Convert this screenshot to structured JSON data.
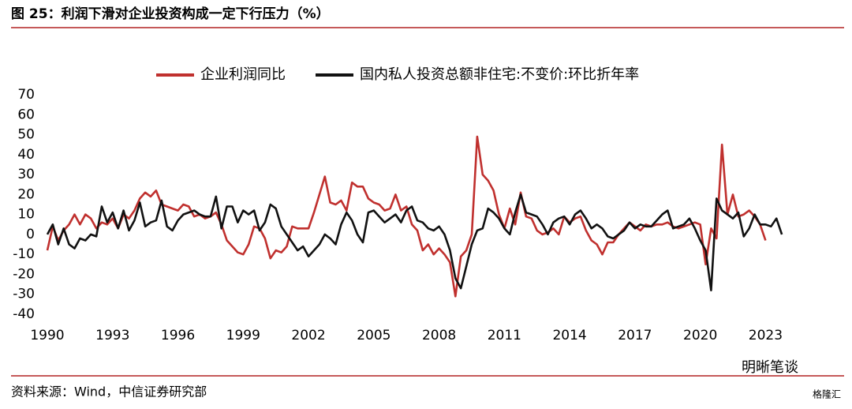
{
  "chart_data": {
    "type": "line",
    "title": "图 25：利润下滑对企业投资构成一定下行压力（%）",
    "source": "资料来源：Wind，中信证券研究部",
    "watermark": "明晰笔谈",
    "watermark2": "格隆汇",
    "legend": "top",
    "xlim": [
      1990,
      2024
    ],
    "xticks": [
      1990,
      1993,
      1996,
      1999,
      2002,
      2005,
      2008,
      2011,
      2014,
      2017,
      2020,
      2023
    ],
    "ylim": [
      -40,
      70
    ],
    "yticks": [
      -40,
      -30,
      -20,
      -10,
      0,
      10,
      20,
      30,
      40,
      50,
      60,
      70
    ],
    "x": [
      1990,
      1990.25,
      1990.5,
      1990.75,
      1991,
      1991.25,
      1991.5,
      1991.75,
      1992,
      1992.25,
      1992.5,
      1992.75,
      1993,
      1993.25,
      1993.5,
      1993.75,
      1994,
      1994.25,
      1994.5,
      1994.75,
      1995,
      1995.25,
      1995.5,
      1995.75,
      1996,
      1996.25,
      1996.5,
      1996.75,
      1997,
      1997.25,
      1997.5,
      1997.75,
      1998,
      1998.25,
      1998.5,
      1998.75,
      1999,
      1999.25,
      1999.5,
      1999.75,
      2000,
      2000.25,
      2000.5,
      2000.75,
      2001,
      2001.25,
      2001.5,
      2001.75,
      2002,
      2002.25,
      2002.5,
      2002.75,
      2003,
      2003.25,
      2003.5,
      2003.75,
      2004,
      2004.25,
      2004.5,
      2004.75,
      2005,
      2005.25,
      2005.5,
      2005.75,
      2006,
      2006.25,
      2006.5,
      2006.75,
      2007,
      2007.25,
      2007.5,
      2007.75,
      2008,
      2008.25,
      2008.5,
      2008.75,
      2009,
      2009.25,
      2009.5,
      2009.75,
      2010,
      2010.25,
      2010.5,
      2010.75,
      2011,
      2011.25,
      2011.5,
      2011.75,
      2012,
      2012.25,
      2012.5,
      2012.75,
      2013,
      2013.25,
      2013.5,
      2013.75,
      2014,
      2014.25,
      2014.5,
      2014.75,
      2015,
      2015.25,
      2015.5,
      2015.75,
      2016,
      2016.25,
      2016.5,
      2016.75,
      2017,
      2017.25,
      2017.5,
      2017.75,
      2018,
      2018.25,
      2018.5,
      2018.75,
      2019,
      2019.25,
      2019.5,
      2019.75,
      2020,
      2020.25,
      2020.5,
      2020.75,
      2021,
      2021.25,
      2021.5,
      2021.75,
      2022,
      2022.25,
      2022.5,
      2022.75,
      2023,
      2023.25,
      2023.5,
      2023.75
    ],
    "series": [
      {
        "name": "企业利润同比",
        "color": "#c0302e",
        "values": [
          -8,
          4,
          -3,
          2,
          5,
          10,
          5,
          10,
          8,
          3,
          6,
          5,
          8,
          3,
          10,
          8,
          12,
          18,
          21,
          19,
          22,
          15,
          14,
          13,
          12,
          15,
          14,
          9,
          10,
          8,
          9,
          11,
          5,
          -3,
          -6,
          -9,
          -10,
          -5,
          4,
          3,
          -2,
          -12,
          -8,
          -9,
          -6,
          4,
          3,
          3,
          3,
          11,
          20,
          29,
          16,
          15,
          17,
          12,
          26,
          24,
          24,
          18,
          16,
          15,
          12,
          13,
          20,
          12,
          14,
          5,
          2,
          -8,
          -5,
          -10,
          -7,
          -10,
          -14,
          -31,
          -11,
          -8,
          0,
          49,
          30,
          27,
          22,
          10,
          3,
          13,
          5,
          21,
          9,
          8,
          2,
          0,
          1,
          3,
          0,
          9,
          6,
          8,
          9,
          2,
          -3,
          -5,
          -10,
          -4,
          -4,
          0,
          3,
          6,
          4,
          2,
          5,
          4,
          5,
          5,
          6,
          4,
          3,
          4,
          5,
          6,
          5,
          -15,
          3,
          -2,
          45,
          10,
          20,
          9,
          10,
          12,
          9,
          5,
          -3,
          null,
          null,
          null
        ]
      },
      {
        "name": "国内私人投资总额非住宅:不变价:环比折年率",
        "color": "#111111",
        "values": [
          0,
          5,
          -5,
          3,
          -5,
          -7,
          -2,
          -3,
          0,
          -1,
          14,
          6,
          11,
          3,
          12,
          2,
          7,
          16,
          4,
          6,
          7,
          17,
          4,
          2,
          7,
          10,
          11,
          12,
          10,
          9,
          9,
          19,
          3,
          14,
          14,
          6,
          12,
          10,
          12,
          2,
          6,
          15,
          13,
          4,
          0,
          -4,
          -8,
          -6,
          -11,
          -8,
          -5,
          0,
          -2,
          -5,
          5,
          11,
          7,
          0,
          -4,
          11,
          12,
          9,
          6,
          8,
          10,
          6,
          12,
          14,
          7,
          6,
          3,
          2,
          4,
          0,
          -8,
          -22,
          -27,
          -16,
          -5,
          2,
          3,
          13,
          11,
          8,
          3,
          0,
          11,
          20,
          11,
          10,
          9,
          5,
          0,
          6,
          8,
          9,
          5,
          10,
          12,
          8,
          3,
          5,
          3,
          -1,
          -2,
          0,
          2,
          6,
          3,
          5,
          4,
          4,
          7,
          10,
          12,
          3,
          4,
          5,
          8,
          3,
          -3,
          -8,
          -28,
          18,
          12,
          10,
          8,
          11,
          -1,
          3,
          10,
          5,
          5,
          4,
          8,
          0
        ]
      }
    ]
  }
}
